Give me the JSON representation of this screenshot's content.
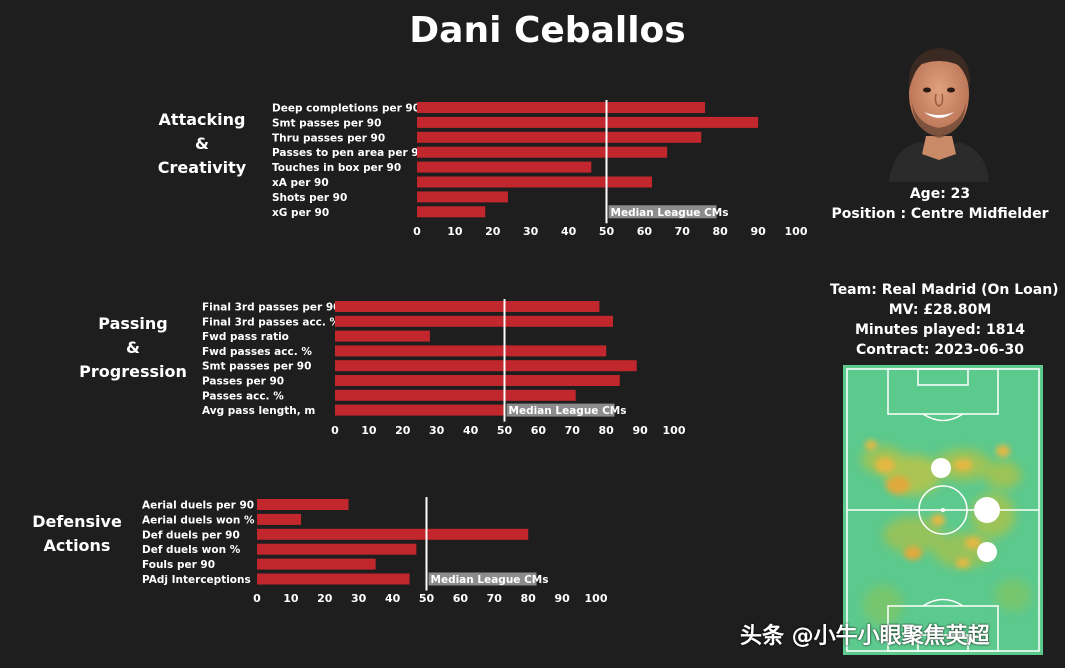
{
  "player": {
    "name": "Dani Ceballos",
    "age_label": "Age: 23",
    "position_label": "Position : Centre Midfielder",
    "team_label": "Team: Real Madrid (On Loan)",
    "mv_label": "MV: £28.80M",
    "minutes_label": "Minutes played: 1814",
    "contract_label": "Contract: 2023-06-30"
  },
  "watermark": "头条 @小牛小眼聚焦英超",
  "colors": {
    "background": "#1e1e1e",
    "bar": "#c1272d",
    "median_line": "#ffffff",
    "median_label_bg": "#8c8c8c",
    "pitch_base": "#58c88a"
  },
  "chart_data": [
    {
      "type": "bar",
      "orientation": "horizontal",
      "title": "Attacking\n&\nCreativity",
      "categories": [
        "Deep completions per 90",
        "Smt passes per 90",
        "Thru passes per 90",
        "Passes to pen area per 90",
        "Touches in box per 90",
        "xA per 90",
        "Shots per 90",
        "xG per 90"
      ],
      "values": [
        76,
        90,
        75,
        66,
        46,
        62,
        24,
        18
      ],
      "median": 50,
      "median_label": "Median League CMs",
      "xlim": [
        0,
        100
      ],
      "xticks": [
        "0",
        "10",
        "20",
        "30",
        "40",
        "50",
        "60",
        "70",
        "80",
        "90",
        "100"
      ]
    },
    {
      "type": "bar",
      "orientation": "horizontal",
      "title": "Passing\n&\nProgression",
      "categories": [
        "Final 3rd passes per 90",
        "Final 3rd passes acc. %",
        "Fwd pass ratio",
        "Fwd passes acc. %",
        "Smt passes per 90",
        "Passes per 90",
        "Passes acc. %",
        "Avg pass length, m"
      ],
      "values": [
        78,
        82,
        28,
        80,
        89,
        84,
        71,
        50
      ],
      "median": 50,
      "median_label": "Median League CMs",
      "xlim": [
        0,
        100
      ],
      "xticks": [
        "0",
        "10",
        "20",
        "30",
        "40",
        "50",
        "60",
        "70",
        "80",
        "90",
        "100"
      ]
    },
    {
      "type": "bar",
      "orientation": "horizontal",
      "title": "Defensive\nActions",
      "categories": [
        "Aerial duels per 90",
        "Aerial duels won %",
        "Def duels per 90",
        "Def duels won %",
        "Fouls per 90",
        "PAdj Interceptions"
      ],
      "values": [
        27,
        13,
        80,
        47,
        35,
        45
      ],
      "median": 50,
      "median_label": "Median League CMs",
      "xlim": [
        0,
        100
      ],
      "xticks": [
        "0",
        "10",
        "20",
        "30",
        "40",
        "50",
        "60",
        "70",
        "80",
        "90",
        "100"
      ]
    }
  ]
}
